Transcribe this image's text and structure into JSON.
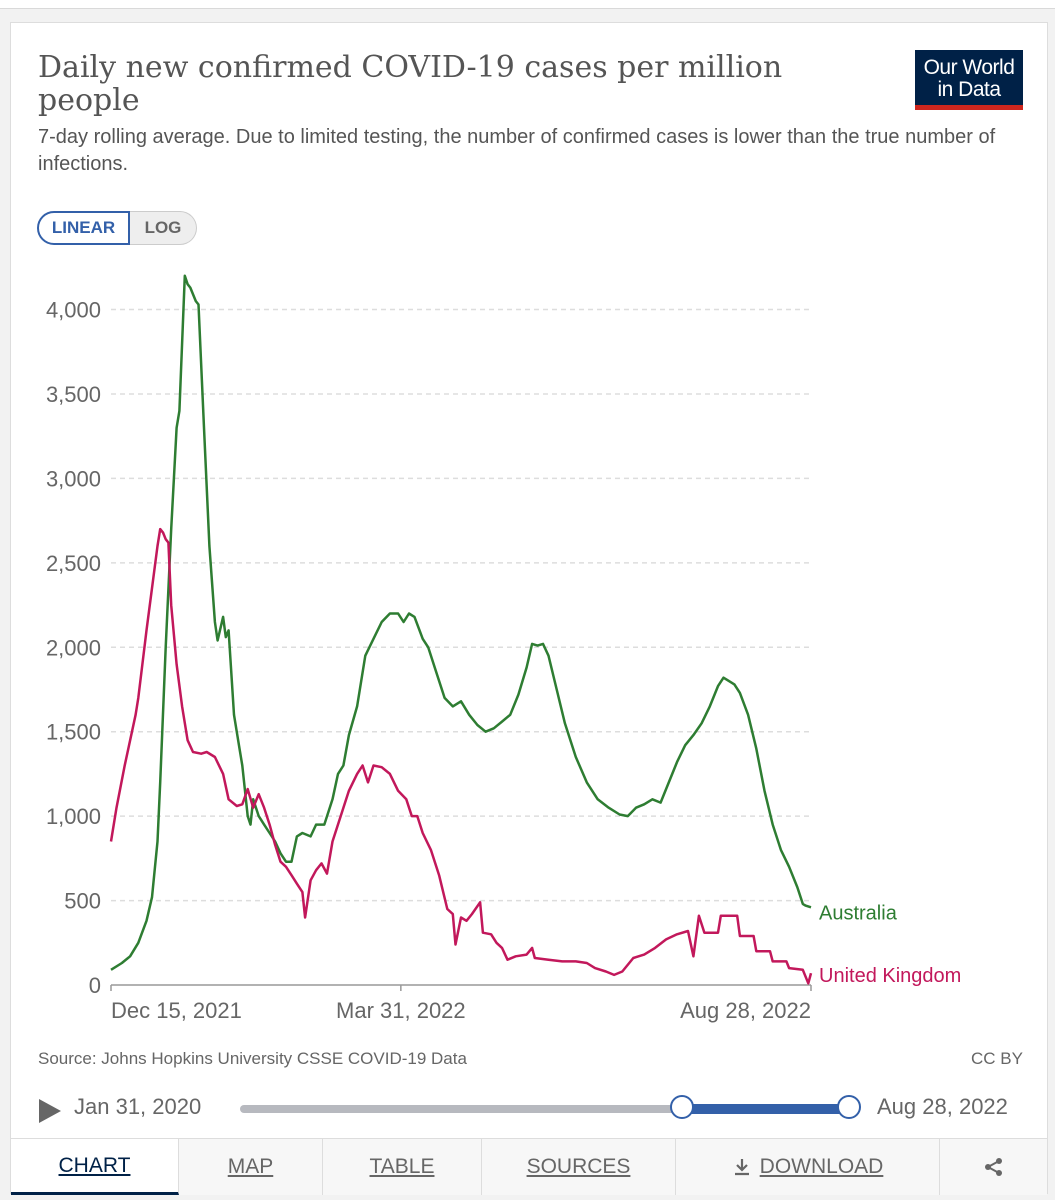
{
  "header": {
    "title": "Daily new confirmed COVID-19 cases per million people",
    "subtitle": "7-day rolling average. Due to limited testing, the number of confirmed cases is lower than the true number of infections.",
    "logo_line1": "Our World",
    "logo_line2": "in Data"
  },
  "scale_toggle": {
    "linear": "LINEAR",
    "log": "LOG",
    "selected": "LINEAR"
  },
  "footer": {
    "source": "Source: Johns Hopkins University CSSE COVID-19 Data",
    "license": "CC BY"
  },
  "timeline": {
    "start": "Jan 31, 2020",
    "end": "Aug 28, 2022"
  },
  "tabs": {
    "chart": "CHART",
    "map": "MAP",
    "table": "TABLE",
    "sources": "SOURCES",
    "download": "DOWNLOAD",
    "active": "CHART"
  },
  "colors": {
    "australia": "#2e7d32",
    "united_kingdom": "#c2185b",
    "accent": "#3360a9",
    "logo_bg": "#002147",
    "logo_bar": "#ce261e"
  },
  "chart_data": {
    "type": "line",
    "title": "Daily new confirmed COVID-19 cases per million people",
    "xlabel": "",
    "ylabel": "",
    "x_range": [
      "2021-12-15",
      "2022-08-28"
    ],
    "ylim": [
      0,
      4200
    ],
    "y_ticks": [
      0,
      500,
      1000,
      1500,
      2000,
      2500,
      3000,
      3500,
      4000
    ],
    "y_tick_labels": [
      "0",
      "500",
      "1,000",
      "1,500",
      "2,000",
      "2,500",
      "3,000",
      "3,500",
      "4,000"
    ],
    "x_ticks": [
      "2021-12-15",
      "2022-03-31",
      "2022-08-28"
    ],
    "x_tick_labels": [
      "Dec 15, 2021",
      "Mar 31, 2022",
      "Aug 28, 2022"
    ],
    "grid": "horizontal dashed",
    "legend": "line-end labels",
    "series": [
      {
        "name": "Australia",
        "color": "#2e7d32",
        "points": [
          [
            "2021-12-15",
            90
          ],
          [
            "2021-12-19",
            130
          ],
          [
            "2021-12-22",
            170
          ],
          [
            "2021-12-25",
            250
          ],
          [
            "2021-12-28",
            380
          ],
          [
            "2021-12-30",
            520
          ],
          [
            "2022-01-01",
            850
          ],
          [
            "2022-01-02",
            1200
          ],
          [
            "2022-01-04",
            2000
          ],
          [
            "2022-01-06",
            2700
          ],
          [
            "2022-01-08",
            3300
          ],
          [
            "2022-01-09",
            3400
          ],
          [
            "2022-01-10",
            3800
          ],
          [
            "2022-01-11",
            4200
          ],
          [
            "2022-01-12",
            4150
          ],
          [
            "2022-01-13",
            4130
          ],
          [
            "2022-01-15",
            4050
          ],
          [
            "2022-01-16",
            4030
          ],
          [
            "2022-01-18",
            3300
          ],
          [
            "2022-01-20",
            2600
          ],
          [
            "2022-01-22",
            2150
          ],
          [
            "2022-01-23",
            2040
          ],
          [
            "2022-01-25",
            2180
          ],
          [
            "2022-01-26",
            2060
          ],
          [
            "2022-01-27",
            2100
          ],
          [
            "2022-01-29",
            1600
          ],
          [
            "2022-01-31",
            1400
          ],
          [
            "2022-02-01",
            1300
          ],
          [
            "2022-02-03",
            1000
          ],
          [
            "2022-02-04",
            950
          ],
          [
            "2022-02-05",
            1100
          ],
          [
            "2022-02-07",
            1000
          ],
          [
            "2022-02-09",
            950
          ],
          [
            "2022-02-11",
            900
          ],
          [
            "2022-02-13",
            850
          ],
          [
            "2022-02-15",
            780
          ],
          [
            "2022-02-17",
            730
          ],
          [
            "2022-02-19",
            730
          ],
          [
            "2022-02-21",
            880
          ],
          [
            "2022-02-23",
            900
          ],
          [
            "2022-02-26",
            880
          ],
          [
            "2022-02-28",
            950
          ],
          [
            "2022-03-03",
            950
          ],
          [
            "2022-03-06",
            1100
          ],
          [
            "2022-03-08",
            1250
          ],
          [
            "2022-03-10",
            1300
          ],
          [
            "2022-03-12",
            1480
          ],
          [
            "2022-03-15",
            1650
          ],
          [
            "2022-03-18",
            1950
          ],
          [
            "2022-03-21",
            2050
          ],
          [
            "2022-03-24",
            2150
          ],
          [
            "2022-03-27",
            2200
          ],
          [
            "2022-03-30",
            2200
          ],
          [
            "2022-04-01",
            2150
          ],
          [
            "2022-04-03",
            2200
          ],
          [
            "2022-04-05",
            2180
          ],
          [
            "2022-04-08",
            2050
          ],
          [
            "2022-04-10",
            2000
          ],
          [
            "2022-04-13",
            1850
          ],
          [
            "2022-04-16",
            1700
          ],
          [
            "2022-04-19",
            1650
          ],
          [
            "2022-04-22",
            1680
          ],
          [
            "2022-04-25",
            1600
          ],
          [
            "2022-04-28",
            1540
          ],
          [
            "2022-05-01",
            1500
          ],
          [
            "2022-05-04",
            1520
          ],
          [
            "2022-05-07",
            1560
          ],
          [
            "2022-05-10",
            1600
          ],
          [
            "2022-05-13",
            1720
          ],
          [
            "2022-05-16",
            1880
          ],
          [
            "2022-05-18",
            2020
          ],
          [
            "2022-05-20",
            2010
          ],
          [
            "2022-05-22",
            2020
          ],
          [
            "2022-05-24",
            1950
          ],
          [
            "2022-05-27",
            1750
          ],
          [
            "2022-05-30",
            1550
          ],
          [
            "2022-06-03",
            1350
          ],
          [
            "2022-06-07",
            1200
          ],
          [
            "2022-06-11",
            1100
          ],
          [
            "2022-06-15",
            1050
          ],
          [
            "2022-06-19",
            1010
          ],
          [
            "2022-06-22",
            1000
          ],
          [
            "2022-06-25",
            1050
          ],
          [
            "2022-06-28",
            1070
          ],
          [
            "2022-07-01",
            1100
          ],
          [
            "2022-07-04",
            1080
          ],
          [
            "2022-07-07",
            1200
          ],
          [
            "2022-07-10",
            1320
          ],
          [
            "2022-07-13",
            1420
          ],
          [
            "2022-07-16",
            1480
          ],
          [
            "2022-07-19",
            1550
          ],
          [
            "2022-07-22",
            1650
          ],
          [
            "2022-07-25",
            1770
          ],
          [
            "2022-07-27",
            1820
          ],
          [
            "2022-07-29",
            1800
          ],
          [
            "2022-07-31",
            1780
          ],
          [
            "2022-08-02",
            1730
          ],
          [
            "2022-08-05",
            1600
          ],
          [
            "2022-08-08",
            1400
          ],
          [
            "2022-08-11",
            1150
          ],
          [
            "2022-08-14",
            950
          ],
          [
            "2022-08-17",
            800
          ],
          [
            "2022-08-20",
            700
          ],
          [
            "2022-08-23",
            580
          ],
          [
            "2022-08-25",
            480
          ],
          [
            "2022-08-26",
            470
          ],
          [
            "2022-08-28",
            460
          ]
        ]
      },
      {
        "name": "United Kingdom",
        "color": "#c2185b",
        "points": [
          [
            "2021-12-15",
            850
          ],
          [
            "2021-12-17",
            1050
          ],
          [
            "2021-12-20",
            1300
          ],
          [
            "2021-12-24",
            1600
          ],
          [
            "2021-12-25",
            1700
          ],
          [
            "2021-12-28",
            2100
          ],
          [
            "2021-12-30",
            2350
          ],
          [
            "2022-01-01",
            2600
          ],
          [
            "2022-01-02",
            2700
          ],
          [
            "2022-01-03",
            2680
          ],
          [
            "2022-01-04",
            2640
          ],
          [
            "2022-01-05",
            2620
          ],
          [
            "2022-01-06",
            2250
          ],
          [
            "2022-01-08",
            1900
          ],
          [
            "2022-01-10",
            1650
          ],
          [
            "2022-01-12",
            1450
          ],
          [
            "2022-01-14",
            1380
          ],
          [
            "2022-01-17",
            1370
          ],
          [
            "2022-01-19",
            1380
          ],
          [
            "2022-01-22",
            1350
          ],
          [
            "2022-01-25",
            1250
          ],
          [
            "2022-01-27",
            1100
          ],
          [
            "2022-01-30",
            1060
          ],
          [
            "2022-02-01",
            1070
          ],
          [
            "2022-02-03",
            1160
          ],
          [
            "2022-02-05",
            1050
          ],
          [
            "2022-02-07",
            1130
          ],
          [
            "2022-02-09",
            1050
          ],
          [
            "2022-02-11",
            950
          ],
          [
            "2022-02-13",
            830
          ],
          [
            "2022-02-15",
            730
          ],
          [
            "2022-02-17",
            700
          ],
          [
            "2022-02-19",
            650
          ],
          [
            "2022-02-21",
            600
          ],
          [
            "2022-02-23",
            550
          ],
          [
            "2022-02-24",
            400
          ],
          [
            "2022-02-26",
            620
          ],
          [
            "2022-02-28",
            680
          ],
          [
            "2022-03-02",
            720
          ],
          [
            "2022-03-04",
            660
          ],
          [
            "2022-03-06",
            850
          ],
          [
            "2022-03-09",
            1000
          ],
          [
            "2022-03-12",
            1150
          ],
          [
            "2022-03-15",
            1250
          ],
          [
            "2022-03-17",
            1300
          ],
          [
            "2022-03-19",
            1200
          ],
          [
            "2022-03-21",
            1300
          ],
          [
            "2022-03-24",
            1290
          ],
          [
            "2022-03-27",
            1250
          ],
          [
            "2022-03-30",
            1150
          ],
          [
            "2022-04-02",
            1100
          ],
          [
            "2022-04-04",
            1000
          ],
          [
            "2022-04-06",
            1000
          ],
          [
            "2022-04-08",
            900
          ],
          [
            "2022-04-11",
            800
          ],
          [
            "2022-04-14",
            650
          ],
          [
            "2022-04-17",
            450
          ],
          [
            "2022-04-19",
            420
          ],
          [
            "2022-04-20",
            240
          ],
          [
            "2022-04-22",
            400
          ],
          [
            "2022-04-24",
            380
          ],
          [
            "2022-04-26",
            420
          ],
          [
            "2022-04-29",
            490
          ],
          [
            "2022-04-30",
            310
          ],
          [
            "2022-05-03",
            300
          ],
          [
            "2022-05-05",
            250
          ],
          [
            "2022-05-07",
            220
          ],
          [
            "2022-05-09",
            150
          ],
          [
            "2022-05-12",
            170
          ],
          [
            "2022-05-16",
            180
          ],
          [
            "2022-05-18",
            220
          ],
          [
            "2022-05-19",
            160
          ],
          [
            "2022-05-24",
            150
          ],
          [
            "2022-05-29",
            140
          ],
          [
            "2022-06-03",
            140
          ],
          [
            "2022-06-07",
            130
          ],
          [
            "2022-06-10",
            100
          ],
          [
            "2022-06-14",
            80
          ],
          [
            "2022-06-17",
            60
          ],
          [
            "2022-06-20",
            80
          ],
          [
            "2022-06-24",
            160
          ],
          [
            "2022-06-28",
            180
          ],
          [
            "2022-07-02",
            220
          ],
          [
            "2022-07-06",
            270
          ],
          [
            "2022-07-10",
            300
          ],
          [
            "2022-07-14",
            320
          ],
          [
            "2022-07-16",
            170
          ],
          [
            "2022-07-18",
            410
          ],
          [
            "2022-07-20",
            310
          ],
          [
            "2022-07-25",
            310
          ],
          [
            "2022-07-26",
            410
          ],
          [
            "2022-08-01",
            410
          ],
          [
            "2022-08-02",
            290
          ],
          [
            "2022-08-07",
            290
          ],
          [
            "2022-08-08",
            200
          ],
          [
            "2022-08-13",
            200
          ],
          [
            "2022-08-14",
            140
          ],
          [
            "2022-08-19",
            140
          ],
          [
            "2022-08-20",
            100
          ],
          [
            "2022-08-25",
            90
          ],
          [
            "2022-08-27",
            10
          ],
          [
            "2022-08-28",
            70
          ]
        ]
      }
    ]
  }
}
